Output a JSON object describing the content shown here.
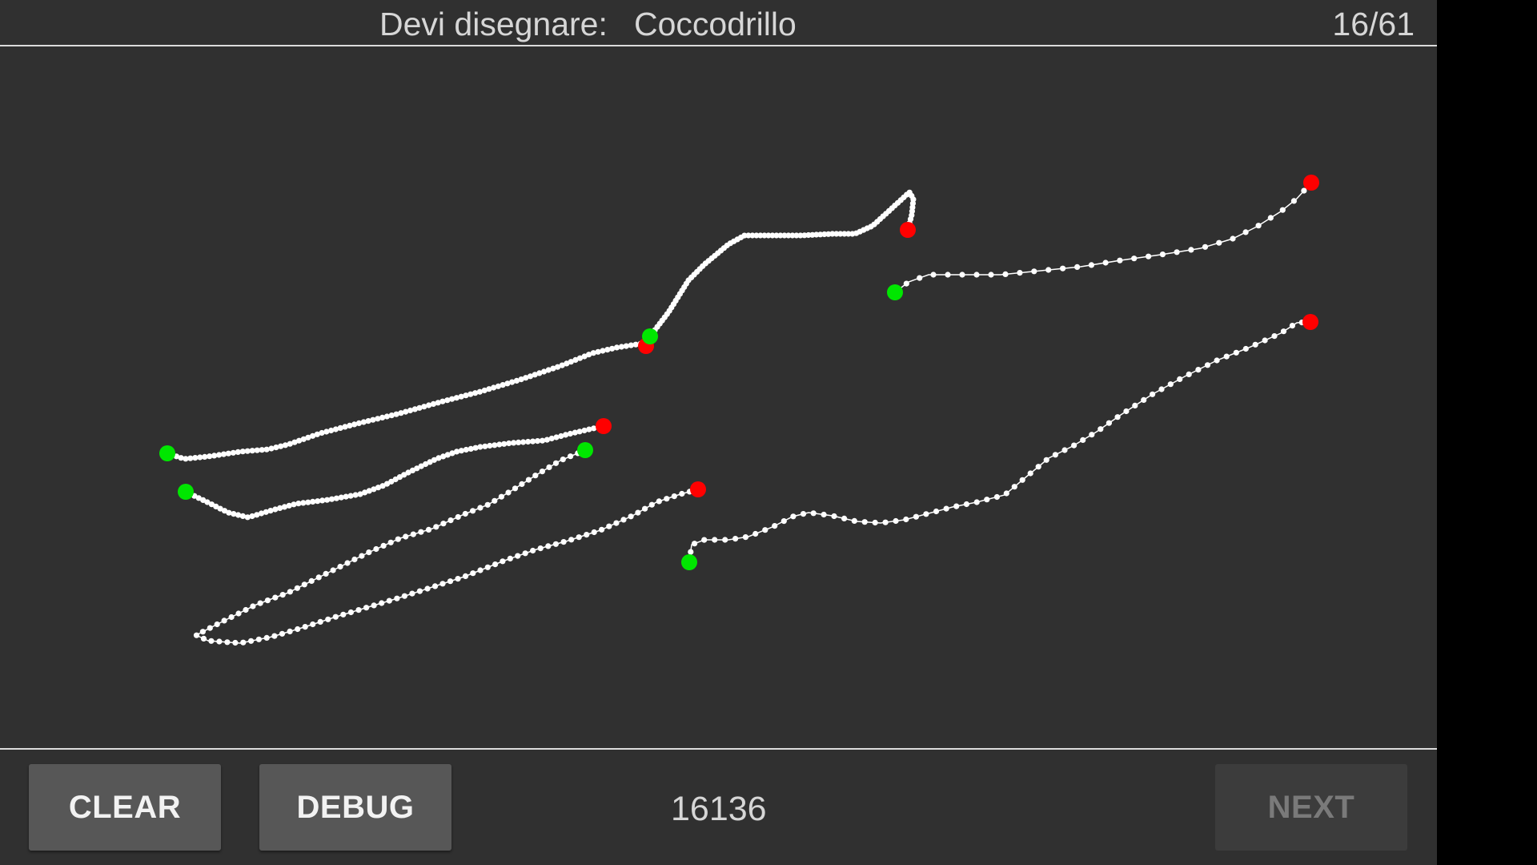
{
  "header": {
    "prompt_label": "Devi disegnare:",
    "target_word": "Coccodrillo",
    "progress": "16/61"
  },
  "footer": {
    "clear_label": "CLEAR",
    "debug_label": "DEBUG",
    "score": "16136",
    "next_label": "NEXT",
    "next_enabled": false
  },
  "colors": {
    "background": "#303030",
    "stroke": "#ffffff",
    "stroke_start": "#00e600",
    "stroke_end": "#ff0000",
    "divider": "#dcdcdc"
  }
}
